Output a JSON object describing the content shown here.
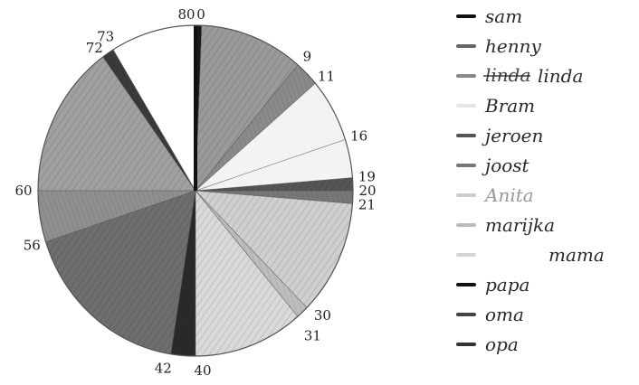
{
  "chart_data": {
    "type": "pie",
    "scale_max": 80,
    "scale_ticks": [
      "80",
      "0",
      "9",
      "11",
      "16",
      "19",
      "20",
      "21",
      "30",
      "31",
      "40",
      "42",
      "56",
      "60",
      "72",
      "73"
    ],
    "slices": [
      {
        "name": "sam",
        "start": 0,
        "end": 0.5,
        "color": "#1a1a1a"
      },
      {
        "name": "henny",
        "start": 0.5,
        "end": 9,
        "color": "#9a9a9a"
      },
      {
        "name": "linda",
        "start": 9,
        "end": 11,
        "color": "#8a8a8a"
      },
      {
        "name": "Bram",
        "start": 11,
        "end": 16,
        "color": "#f3f3f3"
      },
      {
        "name": "jeroen",
        "start": 16,
        "end": 19,
        "color": "#f3f3f3"
      },
      {
        "name": "jeroen",
        "start": 19,
        "end": 20,
        "color": "#555555"
      },
      {
        "name": "joost",
        "start": 20,
        "end": 21,
        "color": "#777777"
      },
      {
        "name": "Anita",
        "start": 21,
        "end": 30,
        "color": "#cfcfcf"
      },
      {
        "name": "marijka",
        "start": 30,
        "end": 31,
        "color": "#bdbdbd"
      },
      {
        "name": "mama",
        "start": 31,
        "end": 40,
        "color": "#d9d9d9"
      },
      {
        "name": "papa",
        "start": 40,
        "end": 42,
        "color": "#2a2a2a"
      },
      {
        "name": "oma",
        "start": 42,
        "end": 56,
        "color": "#6e6e6e"
      },
      {
        "name": "opa",
        "start": 56,
        "end": 60,
        "color": "#8f8f8f"
      },
      {
        "name": "opa",
        "start": 60,
        "end": 72,
        "color": "#a0a0a0"
      },
      {
        "name": "opa",
        "start": 72,
        "end": 73,
        "color": "#3a3a3a"
      },
      {
        "name": "",
        "start": 73,
        "end": 80,
        "color": "#ffffff"
      }
    ]
  },
  "legend": {
    "items": [
      {
        "label": "sam",
        "swatch": "#111111"
      },
      {
        "label": "henny",
        "swatch": "#666666"
      },
      {
        "label": "linda",
        "swatch": "#888888",
        "crossed": "linda"
      },
      {
        "label": "Bram",
        "swatch": "#e6e6e6"
      },
      {
        "label": "jeroen",
        "swatch": "#555555"
      },
      {
        "label": "joost",
        "swatch": "#777777"
      },
      {
        "label": "Anita",
        "swatch": "#cccccc"
      },
      {
        "label": "marijka",
        "swatch": "#bbbbbb"
      },
      {
        "label": "mama",
        "swatch": "#d5d5d5"
      },
      {
        "label": "papa",
        "swatch": "#111111"
      },
      {
        "label": "oma",
        "swatch": "#444444"
      },
      {
        "label": "opa",
        "swatch": "#333333"
      }
    ]
  }
}
